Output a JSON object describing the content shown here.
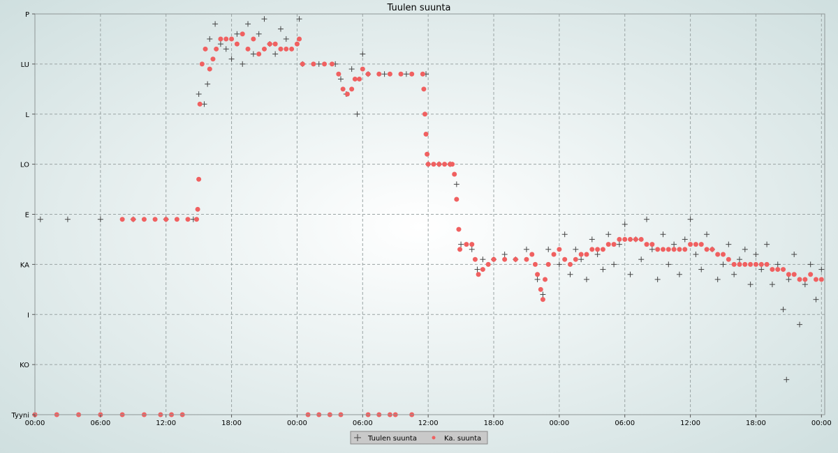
{
  "chart_data": {
    "type": "scatter",
    "title": "Tuulen suunta",
    "xlabel": "",
    "ylabel": "",
    "x_unit": "hours since first tick (00:00)",
    "xlim": [
      0,
      72.3
    ],
    "x_ticks": [
      {
        "x": 0,
        "label": "00:00"
      },
      {
        "x": 6,
        "label": "06:00"
      },
      {
        "x": 12,
        "label": "12:00"
      },
      {
        "x": 18,
        "label": "18:00"
      },
      {
        "x": 24,
        "label": "00:00"
      },
      {
        "x": 30,
        "label": "06:00"
      },
      {
        "x": 36,
        "label": "12:00"
      },
      {
        "x": 42,
        "label": "18:00"
      },
      {
        "x": 48,
        "label": "00:00"
      },
      {
        "x": 54,
        "label": "06:00"
      },
      {
        "x": 60,
        "label": "12:00"
      },
      {
        "x": 66,
        "label": "18:00"
      },
      {
        "x": 72,
        "label": "00:00"
      }
    ],
    "ylim": [
      0,
      8
    ],
    "y_ticks": [
      {
        "y": 0,
        "label": "Tyyni"
      },
      {
        "y": 1,
        "label": "KO"
      },
      {
        "y": 2,
        "label": "I"
      },
      {
        "y": 3,
        "label": "KA"
      },
      {
        "y": 4,
        "label": "E"
      },
      {
        "y": 5,
        "label": "LO"
      },
      {
        "y": 6,
        "label": "L"
      },
      {
        "y": 7,
        "label": "LU"
      },
      {
        "y": 8,
        "label": "P"
      }
    ],
    "grid": true,
    "legend_position": "bottom-center",
    "series": [
      {
        "name": "Tuulen suunta",
        "marker": "plus",
        "color": "#444444",
        "points": [
          [
            0.5,
            3.9
          ],
          [
            3,
            3.9
          ],
          [
            6,
            3.9
          ],
          [
            9,
            3.9
          ],
          [
            12,
            3.9
          ],
          [
            14.5,
            3.9
          ],
          [
            15,
            6.4
          ],
          [
            15.5,
            6.2
          ],
          [
            15.8,
            6.6
          ],
          [
            16,
            7.5
          ],
          [
            16.5,
            7.8
          ],
          [
            17,
            7.4
          ],
          [
            17.5,
            7.3
          ],
          [
            18,
            7.1
          ],
          [
            18.5,
            7.6
          ],
          [
            19,
            7.0
          ],
          [
            19.5,
            7.8
          ],
          [
            20,
            7.2
          ],
          [
            20.5,
            7.6
          ],
          [
            21,
            7.9
          ],
          [
            21.5,
            7.4
          ],
          [
            22,
            7.2
          ],
          [
            22.5,
            7.7
          ],
          [
            23,
            7.5
          ],
          [
            24.2,
            7.9
          ],
          [
            24.5,
            7.0
          ],
          [
            26,
            7.0
          ],
          [
            27.5,
            7.0
          ],
          [
            28,
            6.7
          ],
          [
            28.5,
            6.4
          ],
          [
            29,
            6.9
          ],
          [
            29.5,
            6.0
          ],
          [
            30,
            7.2
          ],
          [
            30.5,
            6.8
          ],
          [
            32,
            6.8
          ],
          [
            34,
            6.8
          ],
          [
            35.8,
            6.8
          ],
          [
            36,
            5.0
          ],
          [
            37,
            5.0
          ],
          [
            38,
            5.0
          ],
          [
            38.6,
            4.6
          ],
          [
            39,
            3.4
          ],
          [
            40,
            3.3
          ],
          [
            40.5,
            2.9
          ],
          [
            41,
            3.1
          ],
          [
            42,
            3.1
          ],
          [
            43,
            3.2
          ],
          [
            44,
            3.1
          ],
          [
            45,
            3.3
          ],
          [
            46,
            2.7
          ],
          [
            46.5,
            2.4
          ],
          [
            47,
            3.3
          ],
          [
            48,
            3.0
          ],
          [
            48.5,
            3.6
          ],
          [
            49,
            2.8
          ],
          [
            49.5,
            3.3
          ],
          [
            50,
            3.1
          ],
          [
            50.5,
            2.7
          ],
          [
            51,
            3.5
          ],
          [
            51.5,
            3.2
          ],
          [
            52,
            2.9
          ],
          [
            52.5,
            3.6
          ],
          [
            53,
            3.0
          ],
          [
            53.5,
            3.4
          ],
          [
            54,
            3.8
          ],
          [
            54.5,
            2.8
          ],
          [
            55,
            3.5
          ],
          [
            55.5,
            3.1
          ],
          [
            56,
            3.9
          ],
          [
            56.5,
            3.3
          ],
          [
            57,
            2.7
          ],
          [
            57.5,
            3.6
          ],
          [
            58,
            3.0
          ],
          [
            58.5,
            3.4
          ],
          [
            59,
            2.8
          ],
          [
            59.5,
            3.5
          ],
          [
            60,
            3.9
          ],
          [
            60.5,
            3.2
          ],
          [
            61,
            2.9
          ],
          [
            61.5,
            3.6
          ],
          [
            62,
            3.3
          ],
          [
            62.5,
            2.7
          ],
          [
            63,
            3.0
          ],
          [
            63.5,
            3.4
          ],
          [
            64,
            2.8
          ],
          [
            64.5,
            3.1
          ],
          [
            65,
            3.3
          ],
          [
            65.5,
            2.6
          ],
          [
            66,
            3.2
          ],
          [
            66.5,
            2.9
          ],
          [
            67,
            3.4
          ],
          [
            67.5,
            2.6
          ],
          [
            68,
            3.0
          ],
          [
            68.5,
            2.1
          ],
          [
            69,
            2.7
          ],
          [
            69.5,
            3.2
          ],
          [
            70,
            1.8
          ],
          [
            70.5,
            2.6
          ],
          [
            71,
            3.0
          ],
          [
            71.5,
            2.3
          ],
          [
            72,
            2.9
          ],
          [
            68.8,
            0.7
          ]
        ]
      },
      {
        "name": "Ka. suunta",
        "marker": "dot",
        "color": "#f06060",
        "points": [
          [
            0,
            0
          ],
          [
            2,
            0
          ],
          [
            4,
            0
          ],
          [
            6,
            0
          ],
          [
            8,
            0
          ],
          [
            10,
            0
          ],
          [
            11.5,
            0
          ],
          [
            12.5,
            0
          ],
          [
            13.5,
            0
          ],
          [
            25,
            0
          ],
          [
            26,
            0
          ],
          [
            27,
            0
          ],
          [
            28,
            0
          ],
          [
            30.5,
            0
          ],
          [
            31.5,
            0
          ],
          [
            32.5,
            0
          ],
          [
            33,
            0
          ],
          [
            34.5,
            0
          ],
          [
            8,
            3.9
          ],
          [
            9,
            3.9
          ],
          [
            10,
            3.9
          ],
          [
            11,
            3.9
          ],
          [
            12,
            3.9
          ],
          [
            13,
            3.9
          ],
          [
            14,
            3.9
          ],
          [
            14.8,
            3.9
          ],
          [
            14.9,
            4.1
          ],
          [
            15,
            4.7
          ],
          [
            15.1,
            6.2
          ],
          [
            15.3,
            7.0
          ],
          [
            15.6,
            7.3
          ],
          [
            16,
            6.9
          ],
          [
            16.3,
            7.1
          ],
          [
            16.6,
            7.3
          ],
          [
            17,
            7.5
          ],
          [
            17.5,
            7.5
          ],
          [
            18,
            7.5
          ],
          [
            18.5,
            7.4
          ],
          [
            19,
            7.6
          ],
          [
            19.5,
            7.3
          ],
          [
            20,
            7.5
          ],
          [
            20.5,
            7.2
          ],
          [
            21,
            7.3
          ],
          [
            21.5,
            7.4
          ],
          [
            22,
            7.4
          ],
          [
            22.5,
            7.3
          ],
          [
            23,
            7.3
          ],
          [
            23.5,
            7.3
          ],
          [
            24,
            7.4
          ],
          [
            24.2,
            7.5
          ],
          [
            24.5,
            7.0
          ],
          [
            25.5,
            7.0
          ],
          [
            26.5,
            7.0
          ],
          [
            27.2,
            7.0
          ],
          [
            27.8,
            6.8
          ],
          [
            28.2,
            6.5
          ],
          [
            28.6,
            6.4
          ],
          [
            29,
            6.5
          ],
          [
            29.3,
            6.7
          ],
          [
            29.7,
            6.7
          ],
          [
            30,
            6.9
          ],
          [
            30.5,
            6.8
          ],
          [
            31.5,
            6.8
          ],
          [
            32.5,
            6.8
          ],
          [
            33.5,
            6.8
          ],
          [
            34.5,
            6.8
          ],
          [
            35.5,
            6.8
          ],
          [
            35.6,
            6.5
          ],
          [
            35.7,
            6.0
          ],
          [
            35.8,
            5.6
          ],
          [
            35.9,
            5.2
          ],
          [
            36,
            5.0
          ],
          [
            36.5,
            5.0
          ],
          [
            37,
            5.0
          ],
          [
            37.5,
            5.0
          ],
          [
            38,
            5.0
          ],
          [
            38.2,
            5.0
          ],
          [
            38.4,
            4.8
          ],
          [
            38.6,
            4.3
          ],
          [
            38.8,
            3.7
          ],
          [
            38.9,
            3.3
          ],
          [
            39.5,
            3.4
          ],
          [
            40,
            3.4
          ],
          [
            40.3,
            3.1
          ],
          [
            40.6,
            2.8
          ],
          [
            41,
            2.9
          ],
          [
            41.5,
            3.0
          ],
          [
            42,
            3.1
          ],
          [
            43,
            3.1
          ],
          [
            44,
            3.1
          ],
          [
            45,
            3.1
          ],
          [
            45.5,
            3.2
          ],
          [
            45.8,
            3.0
          ],
          [
            46,
            2.8
          ],
          [
            46.3,
            2.5
          ],
          [
            46.5,
            2.3
          ],
          [
            46.7,
            2.7
          ],
          [
            47,
            3.0
          ],
          [
            47.5,
            3.2
          ],
          [
            48,
            3.3
          ],
          [
            48.5,
            3.1
          ],
          [
            49,
            3.0
          ],
          [
            49.5,
            3.1
          ],
          [
            50,
            3.2
          ],
          [
            50.5,
            3.2
          ],
          [
            51,
            3.3
          ],
          [
            51.5,
            3.3
          ],
          [
            52,
            3.3
          ],
          [
            52.5,
            3.4
          ],
          [
            53,
            3.4
          ],
          [
            53.5,
            3.5
          ],
          [
            54,
            3.5
          ],
          [
            54.5,
            3.5
          ],
          [
            55,
            3.5
          ],
          [
            55.5,
            3.5
          ],
          [
            56,
            3.4
          ],
          [
            56.5,
            3.4
          ],
          [
            57,
            3.3
          ],
          [
            57.5,
            3.3
          ],
          [
            58,
            3.3
          ],
          [
            58.5,
            3.3
          ],
          [
            59,
            3.3
          ],
          [
            59.5,
            3.3
          ],
          [
            60,
            3.4
          ],
          [
            60.5,
            3.4
          ],
          [
            61,
            3.4
          ],
          [
            61.5,
            3.3
          ],
          [
            62,
            3.3
          ],
          [
            62.5,
            3.2
          ],
          [
            63,
            3.2
          ],
          [
            63.5,
            3.1
          ],
          [
            64,
            3.0
          ],
          [
            64.5,
            3.0
          ],
          [
            65,
            3.0
          ],
          [
            65.5,
            3.0
          ],
          [
            66,
            3.0
          ],
          [
            66.5,
            3.0
          ],
          [
            67,
            3.0
          ],
          [
            67.5,
            2.9
          ],
          [
            68,
            2.9
          ],
          [
            68.5,
            2.9
          ],
          [
            69,
            2.8
          ],
          [
            69.5,
            2.8
          ],
          [
            70,
            2.7
          ],
          [
            70.5,
            2.7
          ],
          [
            71,
            2.8
          ],
          [
            71.5,
            2.7
          ],
          [
            72,
            2.7
          ]
        ]
      }
    ]
  }
}
